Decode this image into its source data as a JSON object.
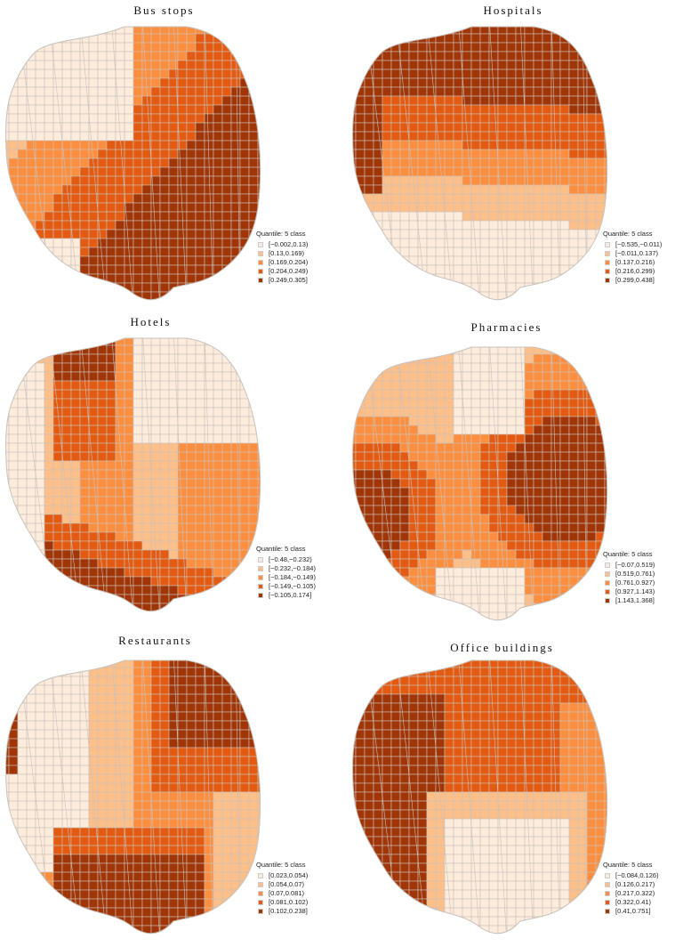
{
  "figure": {
    "legend_type": "Quantile: 5 class",
    "palette": [
      "#fdebdc",
      "#fdbe88",
      "#fd8e3e",
      "#e35a10",
      "#a13505"
    ],
    "boundary_color": "#c8c2bc"
  },
  "chart_data": [
    {
      "type": "choropleth",
      "title": "Bus stops",
      "legend_title": "Quantile: 5 class",
      "classes": [
        "[−0.002,0.13)",
        "[0.13,0.169)",
        "[0.169,0.204)",
        "[0.204,0.249)",
        "[0.249,0.305]"
      ],
      "pattern": "low in north-west, high in south-east"
    },
    {
      "type": "choropleth",
      "title": "Hospitals",
      "legend_title": "Quantile: 5 class",
      "classes": [
        "[−0.535,−0.011)",
        "[−0.011,0.137)",
        "[0.137,0.216)",
        "[0.216,0.299)",
        "[0.299,0.438]"
      ],
      "pattern": "high in north, low in south (horizontal bands)"
    },
    {
      "type": "choropleth",
      "title": "Hotels",
      "legend_title": "Quantile: 5 class",
      "classes": [
        "[−0.48,−0.232)",
        "[−0.232,−0.184)",
        "[−0.184,−0.149)",
        "[−0.149,−0.105)",
        "[−0.105,0.174]"
      ],
      "pattern": "high in north-west and south band, low in north-east and west"
    },
    {
      "type": "choropleth",
      "title": "Pharmacies",
      "legend_title": "Quantile: 5 class",
      "classes": [
        "[−0.07,0.519)",
        "[0.519,0.761)",
        "[0.761,0.927)",
        "[0.927,1.143)",
        "[1.143,1.368]"
      ],
      "pattern": "high east and west, low north and south centers"
    },
    {
      "type": "choropleth",
      "title": "Restaurants",
      "legend_title": "Quantile: 5 class",
      "classes": [
        "[0.023,0.054)",
        "[0.054,0.07)",
        "[0.07,0.081)",
        "[0.081,0.102)",
        "[0.102,0.238]"
      ],
      "pattern": "high north-east and south, low west"
    },
    {
      "type": "choropleth",
      "title": "Office buildings",
      "legend_title": "Quantile: 5 class",
      "classes": [
        "[−0.084,0.126)",
        "[0.126,0.217)",
        "[0.217,0.322)",
        "[0.322,0.41)",
        "[0.41,0.751]"
      ],
      "pattern": "high west, low south-east"
    }
  ]
}
